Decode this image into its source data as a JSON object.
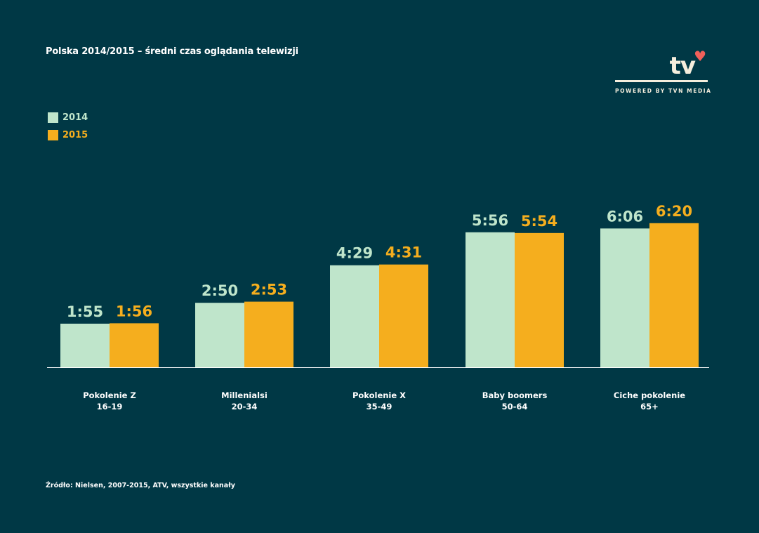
{
  "title": "Polska 2014/2015 – średni czas oglądania telewizji",
  "logo": {
    "text": "tv",
    "tagline": "POWERED BY TVN MEDIA",
    "heart_color": "#f0605a"
  },
  "source": "Źródło: Nielsen, 2007-2015, ATV, wszystkie kanały",
  "chart_data": {
    "type": "bar",
    "title": "Polska 2014/2015 – średni czas oglądania telewizji",
    "categories": [
      {
        "name": "Pokolenie Z",
        "range": "16-19"
      },
      {
        "name": "Millenialsi",
        "range": "20-34"
      },
      {
        "name": "Pokolenie X",
        "range": "35-49"
      },
      {
        "name": "Baby boomers",
        "range": "50-64"
      },
      {
        "name": "Ciche pokolenie",
        "range": "65+"
      }
    ],
    "series": [
      {
        "name": "2014",
        "color": "#bfe5cb",
        "labels": [
          "1:55",
          "2:50",
          "4:29",
          "5:56",
          "6:06"
        ],
        "values_minutes": [
          115,
          170,
          269,
          356,
          366
        ]
      },
      {
        "name": "2015",
        "color": "#f5ae1e",
        "labels": [
          "1:56",
          "2:53",
          "4:31",
          "5:54",
          "6:20"
        ],
        "values_minutes": [
          116,
          173,
          271,
          354,
          380
        ]
      }
    ],
    "unit": "h:mm",
    "legend": "top-left",
    "grid": false
  }
}
